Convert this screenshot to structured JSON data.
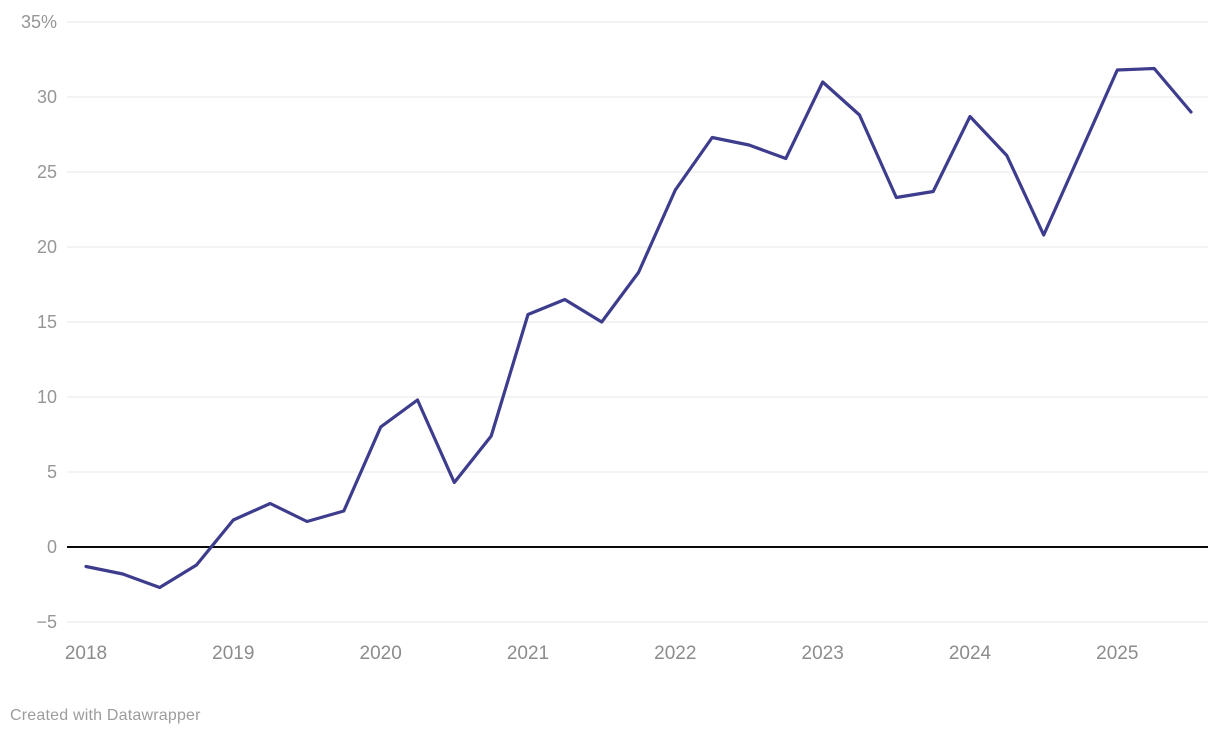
{
  "chart_data": {
    "type": "line",
    "title": "",
    "x_unit": "quarter",
    "x": [
      "2018 Q1",
      "2018 Q2",
      "2018 Q3",
      "2018 Q4",
      "2019 Q1",
      "2019 Q2",
      "2019 Q3",
      "2019 Q4",
      "2020 Q1",
      "2020 Q2",
      "2020 Q3",
      "2020 Q4",
      "2021 Q1",
      "2021 Q2",
      "2021 Q3",
      "2021 Q4",
      "2022 Q1",
      "2022 Q2",
      "2022 Q3",
      "2022 Q4",
      "2023 Q1",
      "2023 Q2",
      "2023 Q3",
      "2023 Q4",
      "2024 Q1",
      "2024 Q2",
      "2024 Q3",
      "2024 Q4",
      "2025 Q1",
      "2025 Q2",
      "2025 Q3"
    ],
    "values": [
      -1.3,
      -1.8,
      -2.7,
      -1.2,
      1.8,
      2.9,
      1.7,
      2.4,
      8.0,
      9.8,
      4.3,
      7.4,
      15.5,
      16.5,
      15.0,
      18.3,
      23.8,
      27.3,
      26.8,
      25.9,
      31.0,
      28.8,
      23.3,
      23.7,
      28.7,
      26.1,
      20.8,
      26.3,
      31.8,
      31.9,
      29.0
    ],
    "ylim": [
      -5,
      35
    ],
    "grid": true,
    "zero_baseline": true,
    "legend": "none",
    "y_ticks": [
      {
        "label": "35%",
        "value": 35
      },
      {
        "label": "30",
        "value": 30
      },
      {
        "label": "25",
        "value": 25
      },
      {
        "label": "20",
        "value": 20
      },
      {
        "label": "15",
        "value": 15
      },
      {
        "label": "10",
        "value": 10
      },
      {
        "label": "5",
        "value": 5
      },
      {
        "label": "0",
        "value": 0
      },
      {
        "label": "−5",
        "value": -5
      }
    ],
    "x_ticks": [
      {
        "label": "2018",
        "quarter_index": 0
      },
      {
        "label": "2019",
        "quarter_index": 4
      },
      {
        "label": "2020",
        "quarter_index": 8
      },
      {
        "label": "2021",
        "quarter_index": 12
      },
      {
        "label": "2022",
        "quarter_index": 16
      },
      {
        "label": "2023",
        "quarter_index": 20
      },
      {
        "label": "2024",
        "quarter_index": 24
      },
      {
        "label": "2025",
        "quarter_index": 28
      }
    ]
  },
  "footer": {
    "attribution": "Created with Datawrapper"
  },
  "colors": {
    "line": "#3d3c8d",
    "grid": "#e7e7e7",
    "zero_line": "#0a0a0a",
    "y_label": "#969696",
    "x_label": "#8c8c8c",
    "attribution": "#9c9c9c",
    "background": "#ffffff"
  }
}
